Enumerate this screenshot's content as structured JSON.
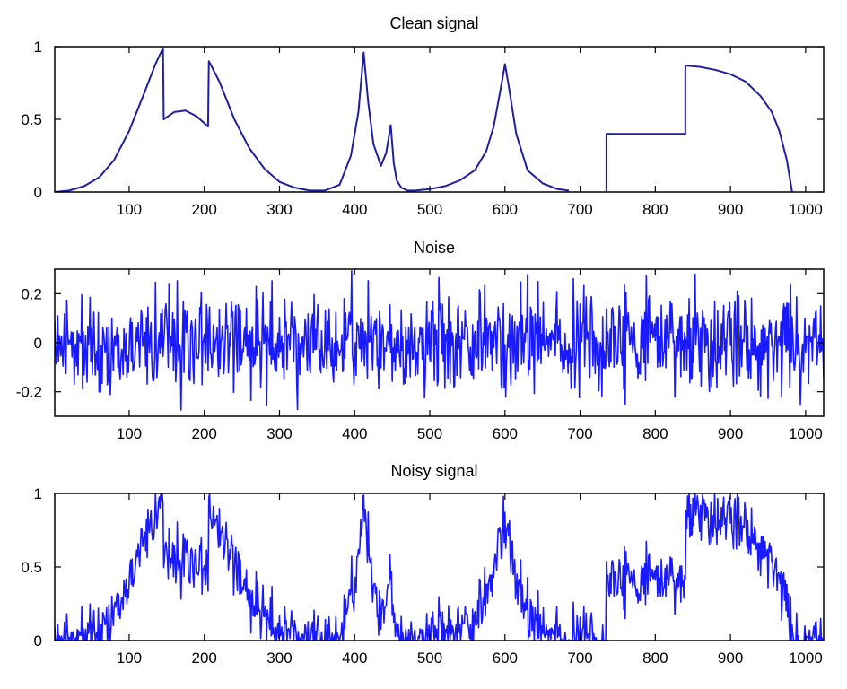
{
  "chart_data": [
    {
      "type": "line",
      "title": "Clean signal",
      "xlim": [
        1,
        1024
      ],
      "ylim": [
        0,
        1
      ],
      "xticks": [
        100,
        200,
        300,
        400,
        500,
        600,
        700,
        800,
        900,
        1000
      ],
      "yticks": [
        {
          "v": 0,
          "label": "0"
        },
        {
          "v": 0.5,
          "label": "0.5"
        },
        {
          "v": 1,
          "label": "1"
        }
      ],
      "color": "#1f1f9e",
      "series": [
        {
          "x": [
            1,
            20,
            40,
            60,
            80,
            100,
            120,
            135,
            145,
            146,
            160,
            175,
            190,
            205,
            206,
            220,
            240,
            260,
            280,
            300,
            320,
            340,
            360,
            380,
            395,
            405,
            412,
            418,
            425,
            435,
            442,
            448,
            452,
            456,
            462,
            470,
            480,
            500,
            520,
            540,
            560,
            575,
            585,
            595,
            600,
            605,
            615,
            630,
            650,
            670,
            685
          ],
          "y": [
            0,
            0.01,
            0.04,
            0.1,
            0.22,
            0.42,
            0.68,
            0.88,
            0.99,
            0.5,
            0.55,
            0.56,
            0.52,
            0.45,
            0.9,
            0.76,
            0.5,
            0.3,
            0.16,
            0.07,
            0.03,
            0.01,
            0.01,
            0.05,
            0.25,
            0.55,
            0.96,
            0.62,
            0.33,
            0.18,
            0.27,
            0.46,
            0.2,
            0.08,
            0.03,
            0.01,
            0.01,
            0.02,
            0.04,
            0.08,
            0.15,
            0.28,
            0.45,
            0.73,
            0.88,
            0.73,
            0.4,
            0.15,
            0.06,
            0.02,
            0.01
          ]
        },
        {
          "x": [
            735,
            735,
            840,
            840,
            860,
            880,
            900,
            920,
            940,
            955,
            965,
            975,
            982
          ],
          "y": [
            0,
            0.4,
            0.4,
            0.87,
            0.86,
            0.84,
            0.81,
            0.76,
            0.66,
            0.55,
            0.42,
            0.22,
            0
          ]
        }
      ]
    },
    {
      "type": "line",
      "title": "Noise",
      "xlim": [
        1,
        1024
      ],
      "ylim": [
        -0.3,
        0.3
      ],
      "xticks": [
        100,
        200,
        300,
        400,
        500,
        600,
        700,
        800,
        900,
        1000
      ],
      "yticks": [
        {
          "v": -0.2,
          "label": "-0.2"
        },
        {
          "v": 0,
          "label": "0"
        },
        {
          "v": 0.2,
          "label": "0.2"
        }
      ],
      "color": "#1a1aff",
      "noise": {
        "n": 1024,
        "sigma": 0.1,
        "clip": 0.3,
        "seed": 11
      }
    },
    {
      "type": "line",
      "title": "Noisy signal",
      "xlim": [
        1,
        1024
      ],
      "ylim": [
        0,
        1
      ],
      "xticks": [
        100,
        200,
        300,
        400,
        500,
        600,
        700,
        800,
        900,
        1000
      ],
      "yticks": [
        {
          "v": 0,
          "label": "0"
        },
        {
          "v": 0.5,
          "label": "0.5"
        },
        {
          "v": 1,
          "label": "1"
        }
      ],
      "color": "#1a1aff",
      "noisy_of": 0,
      "noise": {
        "n": 1024,
        "sigma": 0.1,
        "clip": 0.3,
        "seed": 11
      }
    }
  ]
}
